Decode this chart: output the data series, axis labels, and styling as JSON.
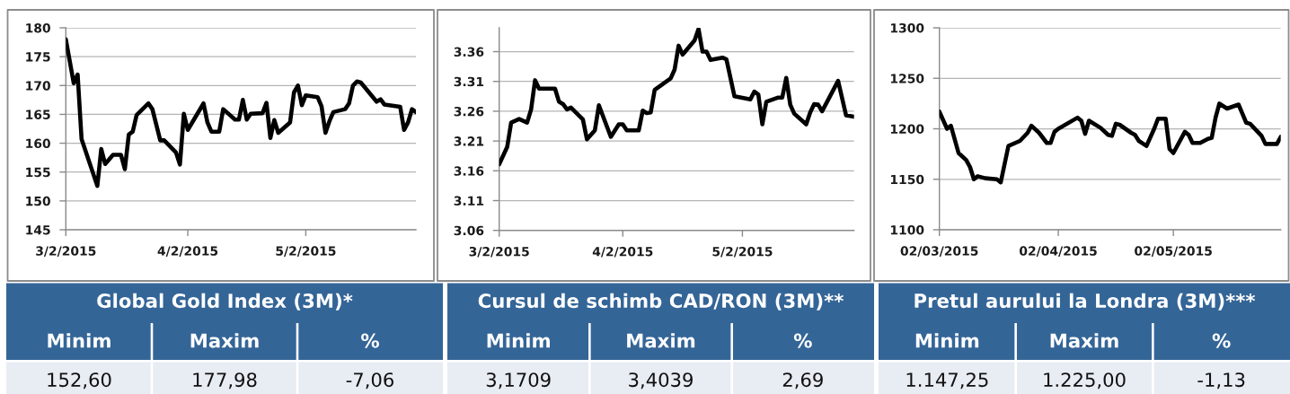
{
  "chart_data": [
    {
      "type": "line",
      "title": "Global Gold Index (3M)*",
      "x": [
        "2015-03-02",
        "2015-03-04",
        "2015-03-05",
        "2015-03-06",
        "2015-03-10",
        "2015-03-11",
        "2015-03-12",
        "2015-03-14",
        "2015-03-16",
        "2015-03-17",
        "2015-03-18",
        "2015-03-19",
        "2015-03-20",
        "2015-03-23",
        "2015-03-24",
        "2015-03-26",
        "2015-03-27",
        "2015-03-30",
        "2015-03-31",
        "2015-04-01",
        "2015-04-02",
        "2015-04-06",
        "2015-04-07",
        "2015-04-08",
        "2015-04-10",
        "2015-04-11",
        "2015-04-14",
        "2015-04-15",
        "2015-04-16",
        "2015-04-17",
        "2015-04-18",
        "2015-04-21",
        "2015-04-22",
        "2015-04-23",
        "2015-04-24",
        "2015-04-25",
        "2015-04-28",
        "2015-04-29",
        "2015-04-30",
        "2015-05-01",
        "2015-05-02",
        "2015-05-05",
        "2015-05-06",
        "2015-05-07",
        "2015-05-08",
        "2015-05-09",
        "2015-05-12",
        "2015-05-13",
        "2015-05-14",
        "2015-05-15",
        "2015-05-16",
        "2015-05-20",
        "2015-05-21",
        "2015-05-22",
        "2015-05-26",
        "2015-05-27",
        "2015-05-28",
        "2015-05-29",
        "2015-05-30"
      ],
      "series": [
        {
          "color": "#000000",
          "values": [
            178.0,
            170.4,
            171.9,
            160.7,
            152.6,
            159.0,
            156.4,
            158.0,
            158.0,
            155.5,
            161.5,
            162.0,
            164.9,
            166.9,
            165.9,
            160.5,
            160.5,
            158.4,
            156.3,
            165.1,
            162.3,
            166.9,
            163.6,
            162.0,
            162.0,
            165.9,
            164.1,
            164.1,
            167.5,
            164.1,
            165.1,
            165.2,
            167.0,
            160.9,
            164.0,
            161.8,
            163.6,
            168.8,
            170.0,
            166.6,
            168.3,
            168.0,
            166.4,
            161.8,
            163.8,
            165.4,
            165.9,
            166.9,
            170.0,
            170.7,
            170.5,
            167.2,
            167.6,
            166.7,
            166.3,
            162.3,
            163.6,
            165.9,
            165.4
          ]
        }
      ],
      "xlim": [
        "2015-03-02",
        "2015-05-30"
      ],
      "xticks": [
        {
          "value": "2015-03-02",
          "label": "3/2/2015"
        },
        {
          "value": "2015-04-02",
          "label": "4/2/2015"
        },
        {
          "value": "2015-05-02",
          "label": "5/2/2015"
        }
      ],
      "ylim": [
        145,
        180
      ],
      "yticks": [
        145,
        150,
        155,
        160,
        165,
        170,
        175,
        180
      ],
      "grid": "y",
      "annotations": [
        "Minim",
        "Maxim",
        "%",
        "152,60",
        "177,98",
        "-7,06"
      ]
    },
    {
      "type": "line",
      "title": "Cursul de schimb CAD/RON (3M)**",
      "x": [
        "2015-03-02",
        "2015-03-04",
        "2015-03-05",
        "2015-03-07",
        "2015-03-09",
        "2015-03-10",
        "2015-03-11",
        "2015-03-12",
        "2015-03-16",
        "2015-03-17",
        "2015-03-18",
        "2015-03-19",
        "2015-03-20",
        "2015-03-23",
        "2015-03-24",
        "2015-03-26",
        "2015-03-27",
        "2015-03-30",
        "2015-04-01",
        "2015-04-02",
        "2015-04-03",
        "2015-04-06",
        "2015-04-07",
        "2015-04-08",
        "2015-04-09",
        "2015-04-10",
        "2015-04-14",
        "2015-04-15",
        "2015-04-16",
        "2015-04-17",
        "2015-04-20",
        "2015-04-21",
        "2015-04-22",
        "2015-04-23",
        "2015-04-24",
        "2015-04-27",
        "2015-04-28",
        "2015-04-30",
        "2015-05-04",
        "2015-05-05",
        "2015-05-06",
        "2015-05-07",
        "2015-05-08",
        "2015-05-11",
        "2015-05-12",
        "2015-05-13",
        "2015-05-14",
        "2015-05-15",
        "2015-05-18",
        "2015-05-19",
        "2015-05-20",
        "2015-05-21",
        "2015-05-22",
        "2015-05-26",
        "2015-05-28",
        "2015-05-30"
      ],
      "series": [
        {
          "color": "#000000",
          "values": [
            3.171,
            3.2,
            3.241,
            3.247,
            3.241,
            3.263,
            3.312,
            3.298,
            3.298,
            3.276,
            3.272,
            3.263,
            3.266,
            3.246,
            3.213,
            3.228,
            3.27,
            3.217,
            3.238,
            3.238,
            3.228,
            3.228,
            3.261,
            3.257,
            3.258,
            3.296,
            3.315,
            3.33,
            3.37,
            3.355,
            3.379,
            3.398,
            3.36,
            3.36,
            3.346,
            3.35,
            3.347,
            3.285,
            3.28,
            3.293,
            3.288,
            3.238,
            3.276,
            3.283,
            3.283,
            3.316,
            3.271,
            3.256,
            3.238,
            3.258,
            3.272,
            3.271,
            3.26,
            3.311,
            3.253,
            3.251
          ]
        }
      ],
      "xlim": [
        "2015-03-02",
        "2015-05-30"
      ],
      "xticks": [
        {
          "value": "2015-03-02",
          "label": "3/2/2015"
        },
        {
          "value": "2015-04-02",
          "label": "4/2/2015"
        },
        {
          "value": "2015-05-02",
          "label": "5/2/2015"
        }
      ],
      "ylim": [
        3.06,
        3.4
      ],
      "yticks": [
        3.06,
        3.11,
        3.16,
        3.21,
        3.26,
        3.31,
        3.36
      ],
      "grid": "y",
      "annotations": [
        "Minim",
        "Maxim",
        "%",
        "3,1709",
        "3,4039",
        "2,69"
      ]
    },
    {
      "type": "line",
      "title": "Pretul aurului la Londra (3M)***",
      "x": [
        "2015-03-02",
        "2015-03-04",
        "2015-03-05",
        "2015-03-07",
        "2015-03-09",
        "2015-03-10",
        "2015-03-11",
        "2015-03-12",
        "2015-03-14",
        "2015-03-17",
        "2015-03-18",
        "2015-03-20",
        "2015-03-23",
        "2015-03-25",
        "2015-03-26",
        "2015-03-28",
        "2015-03-30",
        "2015-03-31",
        "2015-04-01",
        "2015-04-02",
        "2015-04-07",
        "2015-04-08",
        "2015-04-09",
        "2015-04-10",
        "2015-04-13",
        "2015-04-15",
        "2015-04-16",
        "2015-04-17",
        "2015-04-18",
        "2015-04-21",
        "2015-04-22",
        "2015-04-23",
        "2015-04-25",
        "2015-04-27",
        "2015-04-28",
        "2015-04-30",
        "2015-05-01",
        "2015-05-02",
        "2015-05-05",
        "2015-05-06",
        "2015-05-07",
        "2015-05-09",
        "2015-05-11",
        "2015-05-12",
        "2015-05-13",
        "2015-05-14",
        "2015-05-16",
        "2015-05-19",
        "2015-05-20",
        "2015-05-21",
        "2015-05-22",
        "2015-05-25",
        "2015-05-26",
        "2015-05-28",
        "2015-05-29",
        "2015-05-30"
      ],
      "series": [
        {
          "color": "#000000",
          "values": [
            1217,
            1200,
            1203,
            1176,
            1169,
            1162,
            1150,
            1153,
            1151,
            1150,
            1147,
            1183,
            1188,
            1196,
            1203,
            1196,
            1186,
            1186,
            1197,
            1200,
            1211,
            1208,
            1195,
            1208,
            1201,
            1194,
            1193,
            1205,
            1204,
            1196,
            1194,
            1188,
            1183,
            1200,
            1210,
            1210,
            1180,
            1176,
            1197,
            1194,
            1186,
            1186,
            1190,
            1191,
            1211,
            1225,
            1220,
            1224,
            1215,
            1206,
            1205,
            1193,
            1185,
            1185,
            1185,
            1192
          ]
        }
      ],
      "xlim": [
        "2015-03-02",
        "2015-05-30"
      ],
      "xticks": [
        {
          "value": "2015-03-02",
          "label": "02/03/2015"
        },
        {
          "value": "2015-04-02",
          "label": "02/04/2015"
        },
        {
          "value": "2015-05-02",
          "label": "02/05/2015"
        }
      ],
      "ylim": [
        1100,
        1300
      ],
      "yticks": [
        1100,
        1150,
        1200,
        1250,
        1300
      ],
      "grid": "y",
      "annotations": [
        "Minim",
        "Maxim",
        "%",
        "1.147,25",
        "1.225,00",
        "-1,13"
      ]
    }
  ]
}
